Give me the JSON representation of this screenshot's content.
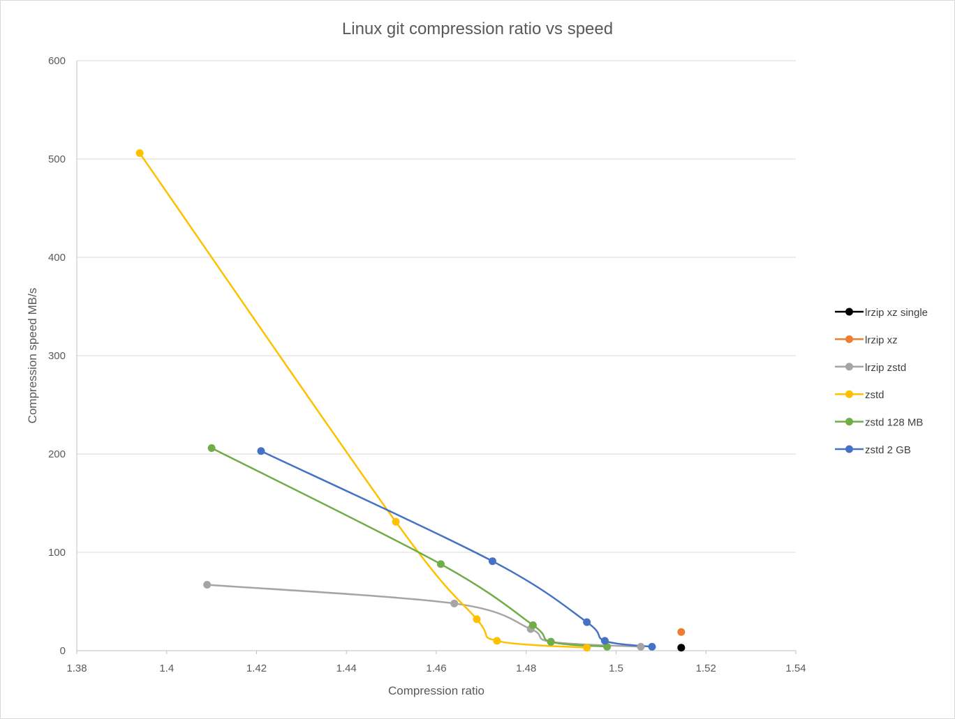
{
  "chart_data": {
    "type": "scatter",
    "title": "Linux git compression ratio vs speed",
    "xlabel": "Compression ratio",
    "ylabel": "Compression speed MB/s",
    "xlim": [
      1.38,
      1.54
    ],
    "ylim": [
      0,
      600
    ],
    "xticks": [
      1.38,
      1.4,
      1.42,
      1.44,
      1.46,
      1.48,
      1.5,
      1.52,
      1.54
    ],
    "xtick_labels": [
      "1.38",
      "1.4",
      "1.42",
      "1.44",
      "1.46",
      "1.48",
      "1.5",
      "1.52",
      "1.54"
    ],
    "yticks": [
      0,
      100,
      200,
      300,
      400,
      500,
      600
    ],
    "ytick_labels": [
      "0",
      "100",
      "200",
      "300",
      "400",
      "500",
      "600"
    ],
    "grid": "horizontal",
    "legend_position": "right",
    "series": [
      {
        "name": "lrzip xz single",
        "color": "#000000",
        "smooth": true,
        "points": [
          [
            1.5145,
            3
          ]
        ]
      },
      {
        "name": "lrzip xz",
        "color": "#ED7D31",
        "smooth": true,
        "points": [
          [
            1.5145,
            19
          ]
        ]
      },
      {
        "name": "lrzip zstd",
        "color": "#A5A5A5",
        "smooth": true,
        "points": [
          [
            1.409,
            67
          ],
          [
            1.464,
            48
          ],
          [
            1.481,
            22
          ],
          [
            1.4855,
            9
          ],
          [
            1.5055,
            4
          ]
        ]
      },
      {
        "name": "zstd",
        "color": "#FFC000",
        "smooth": true,
        "points": [
          [
            1.394,
            506
          ],
          [
            1.451,
            131
          ],
          [
            1.469,
            32
          ],
          [
            1.4735,
            10
          ],
          [
            1.4935,
            3
          ]
        ]
      },
      {
        "name": "zstd 128 MB",
        "color": "#70AD47",
        "smooth": true,
        "points": [
          [
            1.41,
            206
          ],
          [
            1.461,
            88
          ],
          [
            1.4815,
            26
          ],
          [
            1.4855,
            9
          ],
          [
            1.498,
            4
          ]
        ]
      },
      {
        "name": "zstd 2 GB",
        "color": "#4472C4",
        "smooth": true,
        "points": [
          [
            1.421,
            203
          ],
          [
            1.4725,
            91
          ],
          [
            1.4935,
            29
          ],
          [
            1.4975,
            10
          ],
          [
            1.508,
            4
          ]
        ]
      }
    ]
  }
}
